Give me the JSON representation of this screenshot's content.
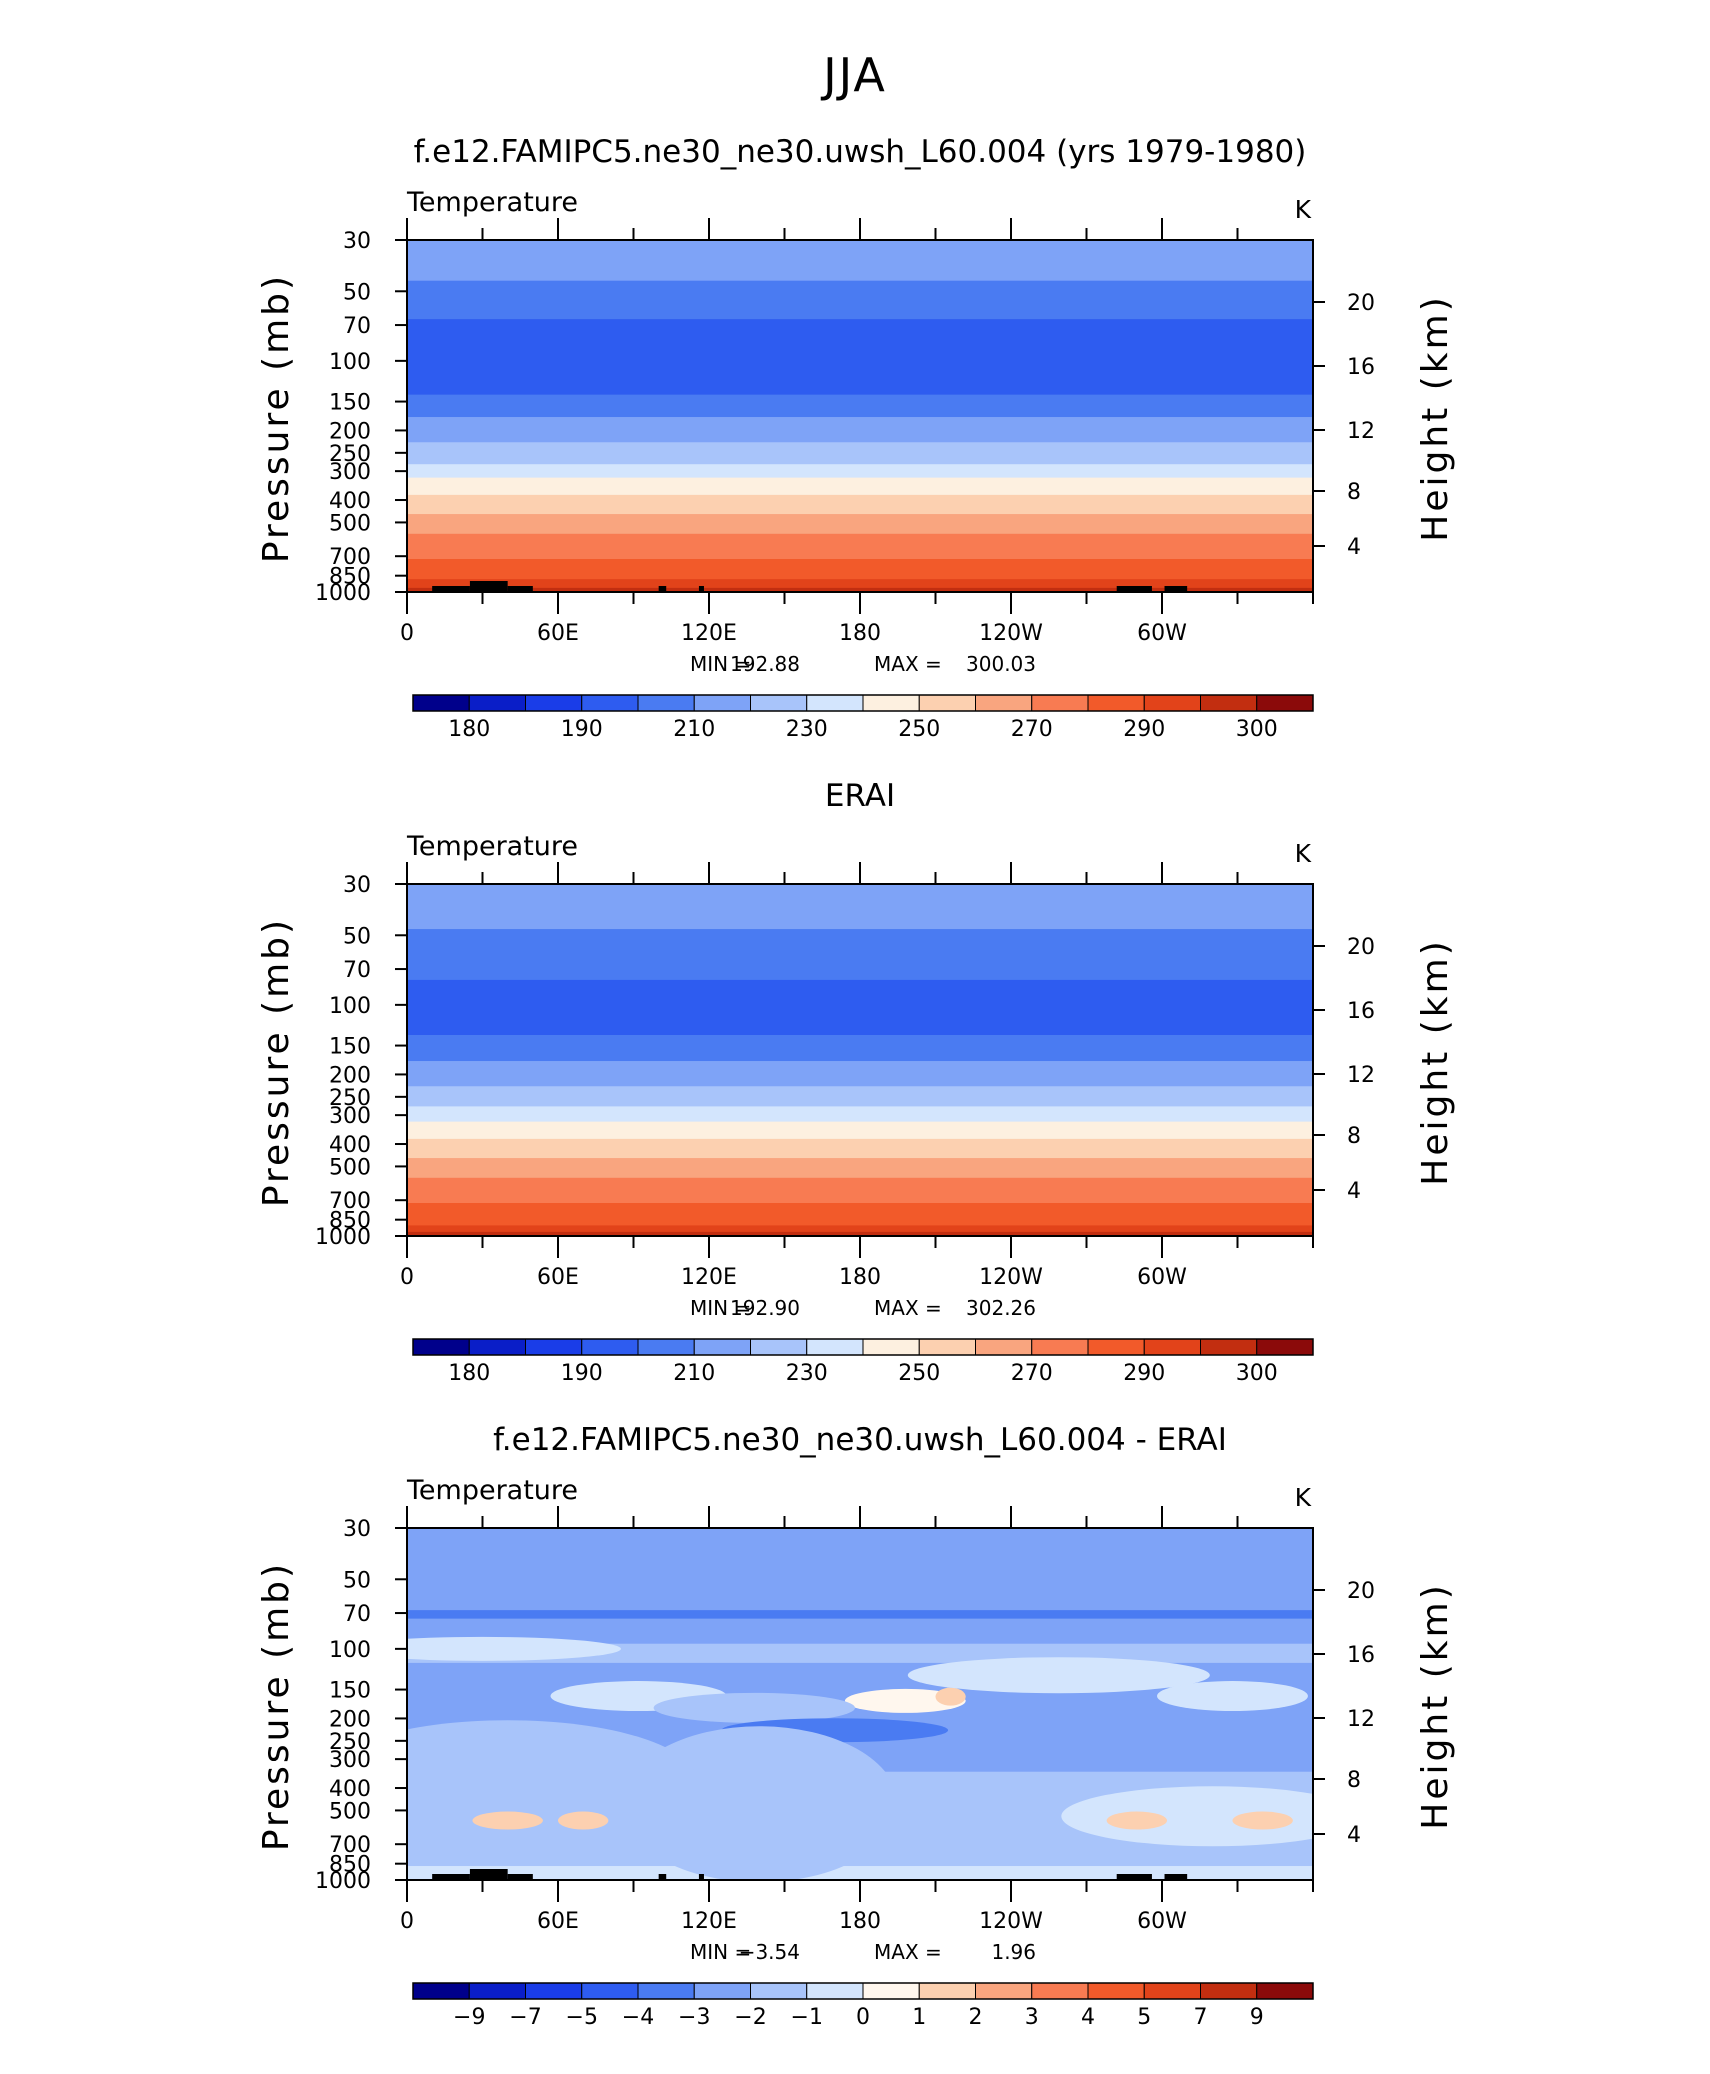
{
  "page": {
    "title": "JJA"
  },
  "colors": {
    "abs_palette": [
      "#00008b",
      "#0a1ec8",
      "#1a3de8",
      "#2e5cf0",
      "#4a7bf2",
      "#7ea3f7",
      "#a8c4fa",
      "#d3e5fd",
      "#fdf0e0",
      "#fcd0b0",
      "#f9a57f",
      "#f87b52",
      "#f25a2a",
      "#e2431a",
      "#c22e10",
      "#8b0a0a"
    ],
    "diff_palette": [
      "#00008b",
      "#0a1ec8",
      "#1a3de8",
      "#2e5cf0",
      "#4a7bf2",
      "#7ea3f7",
      "#a8c4fa",
      "#d3e5fd",
      "#fff7ee",
      "#fcd0b0",
      "#f9a57f",
      "#f87b52",
      "#f25a2a",
      "#e2431a",
      "#c22e10",
      "#8b0a0a"
    ],
    "topography": "#000000"
  },
  "chart_data": [
    {
      "type": "heatmap",
      "title": "f.e12.FAMIPC5.ne30_ne30.uwsh_L60.004 (yrs 1979-1980)",
      "left_label": "Temperature",
      "units": "K",
      "ylabel": "Pressure (mb)",
      "ylabel_right": "Height (km)",
      "y_scale": "log",
      "ylim": [
        1000,
        30
      ],
      "y_ticks": [
        "30",
        "50",
        "70",
        "100",
        "150",
        "200",
        "250",
        "300",
        "400",
        "500",
        "700",
        "850",
        "1000"
      ],
      "y_right_ticks": [
        "20",
        "16",
        "12",
        "8",
        "4"
      ],
      "x_ticks": [
        "0",
        "60E",
        "120E",
        "180",
        "120W",
        "60W"
      ],
      "stats": {
        "min_label": "MIN =",
        "min_value": "192.88",
        "max_label": "MAX =",
        "max_value": "300.03"
      },
      "colorbar_labels": [
        "180",
        "190",
        "210",
        "230",
        "250",
        "270",
        "290",
        "300"
      ],
      "levels": [
        {
          "p": 30,
          "c": 5
        },
        {
          "p": 45,
          "c": 4
        },
        {
          "p": 66,
          "c": 3
        },
        {
          "p": 140,
          "c": 4
        },
        {
          "p": 175,
          "c": 5
        },
        {
          "p": 225,
          "c": 6
        },
        {
          "p": 280,
          "c": 7
        },
        {
          "p": 320,
          "c": 8
        },
        {
          "p": 380,
          "c": 9
        },
        {
          "p": 460,
          "c": 10
        },
        {
          "p": 560,
          "c": 11
        },
        {
          "p": 720,
          "c": 12
        },
        {
          "p": 880,
          "c": 13
        },
        {
          "p": 960,
          "c": 14
        }
      ],
      "topography": [
        [
          10,
          25,
          "low"
        ],
        [
          25,
          40,
          "high"
        ],
        [
          40,
          50,
          "low"
        ],
        [
          100,
          103,
          "low"
        ],
        [
          116,
          118,
          "low"
        ],
        [
          282,
          296,
          "low"
        ],
        [
          301,
          310,
          "low"
        ]
      ]
    },
    {
      "type": "heatmap",
      "title": "ERAI",
      "left_label": "Temperature",
      "units": "K",
      "ylabel": "Pressure (mb)",
      "ylabel_right": "Height (km)",
      "y_scale": "log",
      "ylim": [
        1000,
        30
      ],
      "y_ticks": [
        "30",
        "50",
        "70",
        "100",
        "150",
        "200",
        "250",
        "300",
        "400",
        "500",
        "700",
        "850",
        "1000"
      ],
      "y_right_ticks": [
        "20",
        "16",
        "12",
        "8",
        "4"
      ],
      "x_ticks": [
        "0",
        "60E",
        "120E",
        "180",
        "120W",
        "60W"
      ],
      "stats": {
        "min_label": "MIN =",
        "min_value": "192.90",
        "max_label": "MAX =",
        "max_value": "302.26"
      },
      "colorbar_labels": [
        "180",
        "190",
        "210",
        "230",
        "250",
        "270",
        "290",
        "300"
      ],
      "levels": [
        {
          "p": 30,
          "c": 5
        },
        {
          "p": 47,
          "c": 4
        },
        {
          "p": 78,
          "c": 3
        },
        {
          "p": 135,
          "c": 4
        },
        {
          "p": 175,
          "c": 5
        },
        {
          "p": 225,
          "c": 6
        },
        {
          "p": 275,
          "c": 7
        },
        {
          "p": 320,
          "c": 8
        },
        {
          "p": 380,
          "c": 9
        },
        {
          "p": 460,
          "c": 10
        },
        {
          "p": 560,
          "c": 11
        },
        {
          "p": 720,
          "c": 12
        },
        {
          "p": 900,
          "c": 13
        },
        {
          "p": 960,
          "c": 14
        }
      ],
      "topography": []
    },
    {
      "type": "heatmap",
      "title": "f.e12.FAMIPC5.ne30_ne30.uwsh_L60.004 - ERAI",
      "left_label": "Temperature",
      "units": "K",
      "ylabel": "Pressure (mb)",
      "ylabel_right": "Height (km)",
      "y_scale": "log",
      "ylim": [
        1000,
        30
      ],
      "y_ticks": [
        "30",
        "50",
        "70",
        "100",
        "150",
        "200",
        "250",
        "300",
        "400",
        "500",
        "700",
        "850",
        "1000"
      ],
      "y_right_ticks": [
        "20",
        "16",
        "12",
        "8",
        "4"
      ],
      "x_ticks": [
        "0",
        "60E",
        "120E",
        "180",
        "120W",
        "60W"
      ],
      "stats": {
        "min_label": "MIN =",
        "min_value": "−3.54",
        "max_label": "MAX =",
        "max_value": "1.96"
      },
      "colorbar_labels": [
        "−9",
        "−7",
        "−5",
        "−4",
        "−3",
        "−2",
        "−1",
        "0",
        "1",
        "2",
        "3",
        "4",
        "5",
        "7",
        "9"
      ],
      "levels": [
        {
          "p": 30,
          "c": 5
        },
        {
          "p": 68,
          "c": 4
        },
        {
          "p": 74,
          "c": 5
        },
        {
          "p": 95,
          "c": 6
        },
        {
          "p": 115,
          "c": 5
        },
        {
          "p": 340,
          "c": 6
        },
        {
          "p": 870,
          "c": 7
        }
      ],
      "topography": [
        [
          10,
          25,
          "low"
        ],
        [
          25,
          40,
          "high"
        ],
        [
          40,
          50,
          "low"
        ],
        [
          100,
          103,
          "low"
        ],
        [
          116,
          118,
          "low"
        ],
        [
          282,
          296,
          "low"
        ],
        [
          301,
          310,
          "low"
        ]
      ]
    }
  ]
}
